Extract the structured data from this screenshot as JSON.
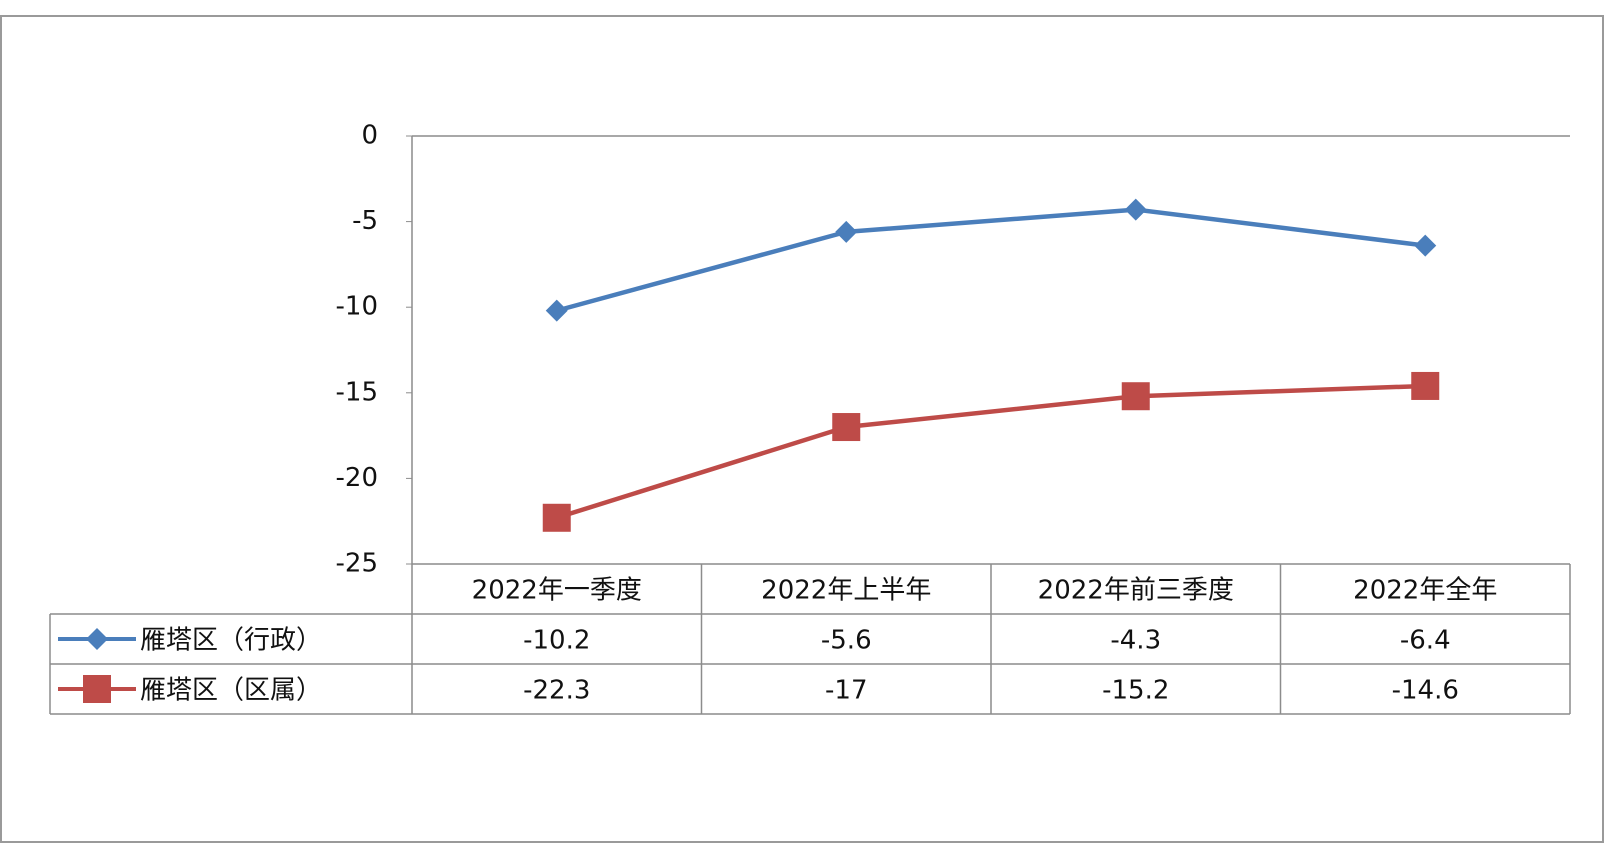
{
  "chart_data": {
    "type": "line",
    "categories": [
      "2022年一季度",
      "2022年上半年",
      "2022年前三季度",
      "2022年全年"
    ],
    "series": [
      {
        "name": "雁塔区（行政）",
        "color": "#4a7ebb",
        "marker": "diamond",
        "values": [
          -10.2,
          -5.6,
          -4.3,
          -6.4
        ]
      },
      {
        "name": "雁塔区（区属）",
        "color": "#be4b48",
        "marker": "square",
        "values": [
          -22.3,
          -17,
          -15.2,
          -14.6
        ]
      }
    ],
    "ylim": [
      -25,
      0
    ],
    "yticks": [
      0,
      -5,
      -10,
      -15,
      -20,
      -25
    ],
    "grid": false,
    "data_table": true
  }
}
